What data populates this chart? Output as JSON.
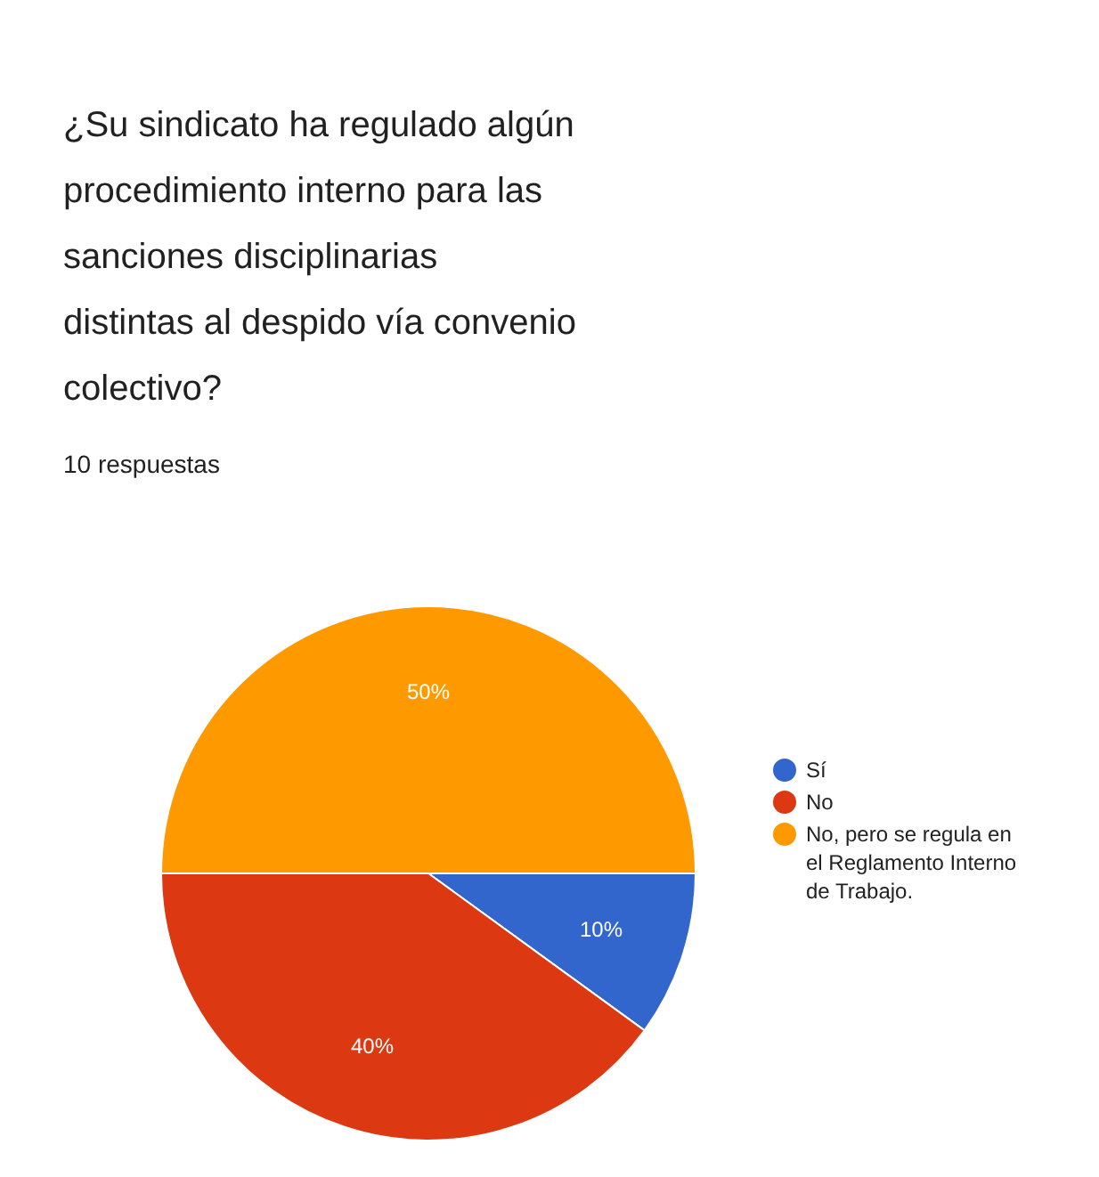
{
  "chart_data": {
    "type": "pie",
    "title": "¿Su sindicato ha regulado algún procedimiento interno para las sanciones disciplinarias distintas al despido vía convenio colectivo?",
    "subtitle": "10 respuestas",
    "categories": [
      "Sí",
      "No",
      "No, pero se regula en el Reglamento Interno de Trabajo."
    ],
    "values": [
      10,
      40,
      50
    ],
    "colors": [
      "#3366cc",
      "#dc3912",
      "#ff9900"
    ],
    "value_labels": [
      "10%",
      "40%",
      "50%"
    ],
    "legend": "right"
  }
}
